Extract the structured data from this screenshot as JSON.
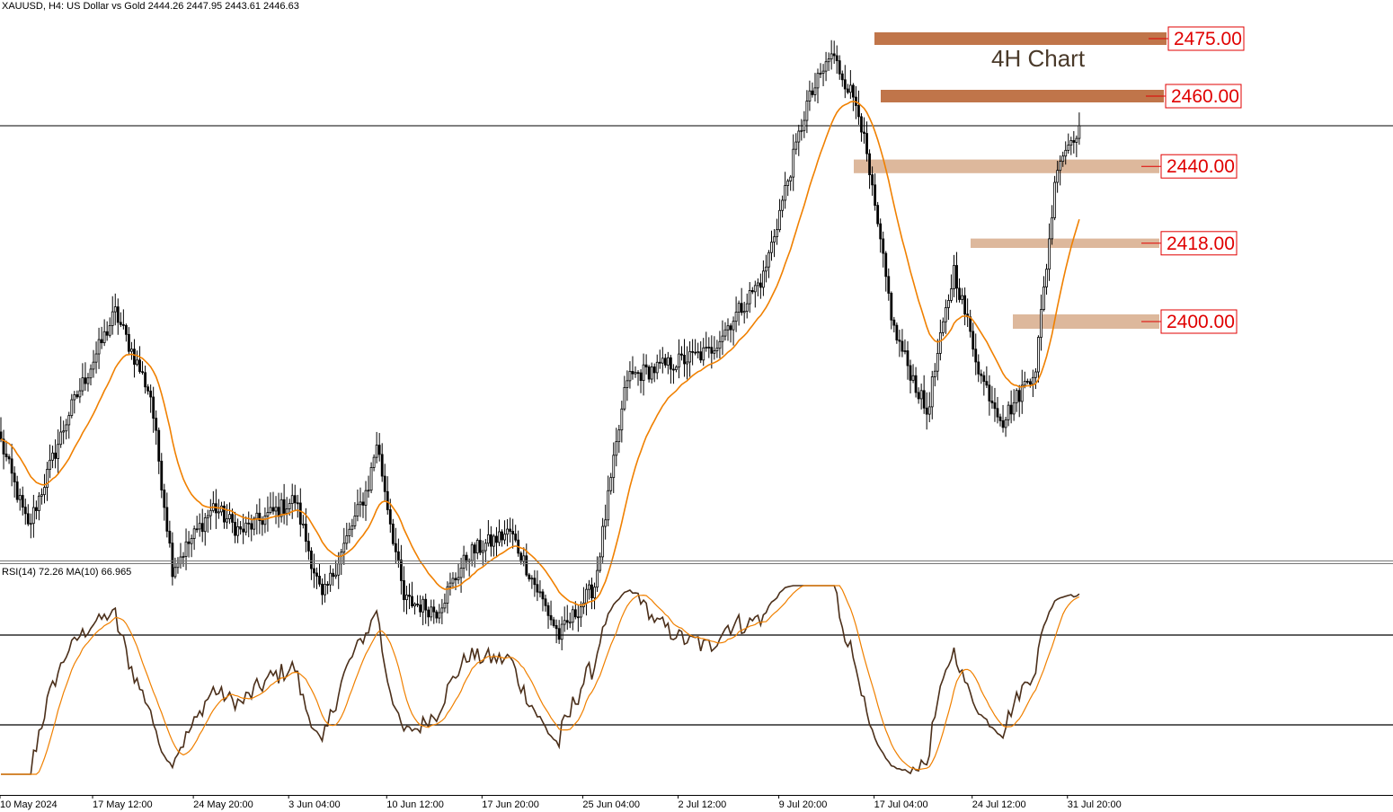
{
  "header": {
    "symbol_line": "XAUUSD, H4:  US Dollar vs Gold  2444.26 2447.95 2443.61 2446.63"
  },
  "annotation": {
    "text": "4H Chart"
  },
  "colors": {
    "candle": "#000000",
    "ma": "#f08000",
    "rsi": "#4b2f1a",
    "rsi_ma": "#f08000",
    "zone_dark": "#c0754a",
    "zone_light": "#ddb89c",
    "label_red": "#e00000"
  },
  "chart_data": [
    {
      "type": "candlestick",
      "title": "",
      "ylim": [
        2330,
        2485
      ],
      "horizontal_line": 2450,
      "ma_overlay": true,
      "levels": [
        {
          "value": 2475,
          "label": "2475.00",
          "zone": [
            2472.5,
            2476.0
          ],
          "style": "dark"
        },
        {
          "value": 2460,
          "label": "2460.00",
          "zone": [
            2456.5,
            2460.0
          ],
          "style": "dark"
        },
        {
          "value": 2440,
          "label": "2440.00",
          "zone": [
            2436.8,
            2440.6
          ],
          "style": "light"
        },
        {
          "value": 2418,
          "label": "2418.00",
          "zone": [
            2416.0,
            2418.6
          ],
          "style": "light"
        },
        {
          "value": 2400,
          "label": "2400.00",
          "zone": [
            2393.5,
            2397.5
          ],
          "style": "light"
        }
      ],
      "anchors": [
        [
          0,
          2362
        ],
        [
          10,
          2338
        ],
        [
          25,
          2370
        ],
        [
          42,
          2398
        ],
        [
          55,
          2375
        ],
        [
          63,
          2327
        ],
        [
          78,
          2344
        ],
        [
          88,
          2337
        ],
        [
          108,
          2346
        ],
        [
          118,
          2318
        ],
        [
          135,
          2350
        ],
        [
          138,
          2362
        ],
        [
          148,
          2318
        ],
        [
          160,
          2315
        ],
        [
          172,
          2331
        ],
        [
          187,
          2337
        ],
        [
          205,
          2308
        ],
        [
          218,
          2322
        ],
        [
          230,
          2380
        ],
        [
          260,
          2387
        ],
        [
          280,
          2408
        ],
        [
          296,
          2456
        ],
        [
          305,
          2470
        ],
        [
          315,
          2455
        ],
        [
          328,
          2393
        ],
        [
          340,
          2370
        ],
        [
          350,
          2410
        ],
        [
          360,
          2380
        ],
        [
          368,
          2368
        ],
        [
          380,
          2383
        ],
        [
          388,
          2440
        ],
        [
          396,
          2450
        ]
      ],
      "xticks": [
        {
          "index": 0,
          "label": "10 May 2024"
        },
        {
          "index": 34,
          "label": "17 May 12:00"
        },
        {
          "index": 71,
          "label": "24 May 20:00"
        },
        {
          "index": 106,
          "label": "3 Jun 04:00"
        },
        {
          "index": 142,
          "label": "10 Jun 12:00"
        },
        {
          "index": 177,
          "label": "17 Jun 20:00"
        },
        {
          "index": 214,
          "label": "25 Jun 04:00"
        },
        {
          "index": 249,
          "label": "2 Jul 12:00"
        },
        {
          "index": 286,
          "label": "9 Jul 20:00"
        },
        {
          "index": 321,
          "label": "17 Jul 04:00"
        },
        {
          "index": 357,
          "label": "24 Jul 12:00"
        },
        {
          "index": 392,
          "label": "31 Jul 20:00"
        }
      ]
    },
    {
      "type": "line",
      "title": "RSI(14) 72.26 MA(10) 66.965",
      "ylim": [
        0,
        100
      ],
      "bands": [
        70,
        30
      ],
      "series": [
        {
          "name": "RSI(14)",
          "last": 72.26
        },
        {
          "name": "MA(10)",
          "last": 66.965
        }
      ]
    }
  ]
}
